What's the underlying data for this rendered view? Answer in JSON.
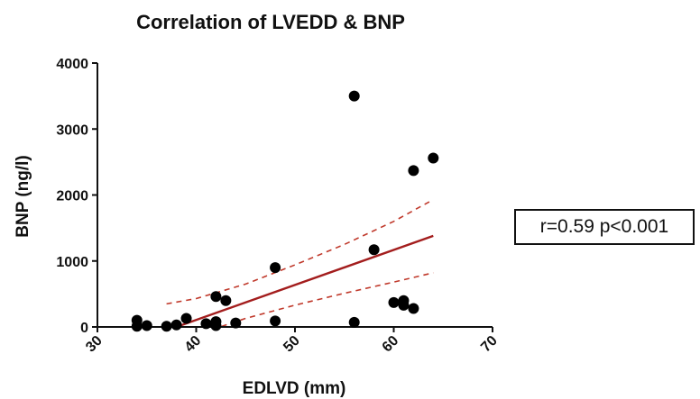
{
  "chart_data": {
    "type": "scatter",
    "title": "Correlation of LVEDD & BNP",
    "xlabel": "EDLVD (mm)",
    "ylabel": "BNP (ng/l)",
    "xlim": [
      30,
      70
    ],
    "ylim": [
      0,
      4000
    ],
    "xticks": [
      30,
      40,
      50,
      60,
      70
    ],
    "yticks": [
      0,
      1000,
      2000,
      3000,
      4000
    ],
    "points": [
      {
        "x": 34,
        "y": 100
      },
      {
        "x": 34,
        "y": 10
      },
      {
        "x": 35,
        "y": 20
      },
      {
        "x": 37,
        "y": 10
      },
      {
        "x": 38,
        "y": 30
      },
      {
        "x": 39,
        "y": 130
      },
      {
        "x": 41,
        "y": 50
      },
      {
        "x": 42,
        "y": 460
      },
      {
        "x": 42,
        "y": 80
      },
      {
        "x": 42,
        "y": 20
      },
      {
        "x": 43,
        "y": 400
      },
      {
        "x": 44,
        "y": 60
      },
      {
        "x": 48,
        "y": 900
      },
      {
        "x": 48,
        "y": 90
      },
      {
        "x": 56,
        "y": 3500
      },
      {
        "x": 56,
        "y": 70
      },
      {
        "x": 58,
        "y": 1170
      },
      {
        "x": 60,
        "y": 370
      },
      {
        "x": 61,
        "y": 400
      },
      {
        "x": 61,
        "y": 330
      },
      {
        "x": 62,
        "y": 2370
      },
      {
        "x": 62,
        "y": 280
      },
      {
        "x": 64,
        "y": 2560
      }
    ],
    "regression_line": {
      "x": [
        38,
        64
      ],
      "y": [
        0,
        1380
      ],
      "color": "#a31d1d"
    },
    "confidence_band": {
      "upper": {
        "x": [
          37,
          40,
          45,
          50,
          55,
          60,
          64
        ],
        "y": [
          350,
          430,
          650,
          940,
          1250,
          1600,
          1930
        ]
      },
      "lower": {
        "x": [
          37,
          40,
          45,
          50,
          55,
          60,
          64
        ],
        "y": [
          -330,
          -120,
          130,
          330,
          510,
          680,
          820
        ]
      },
      "color": "#c0392b"
    },
    "annotation": "r=0.59 p<0.001",
    "grid": false,
    "colors": {
      "points": "#000000",
      "axes": "#111111"
    }
  }
}
